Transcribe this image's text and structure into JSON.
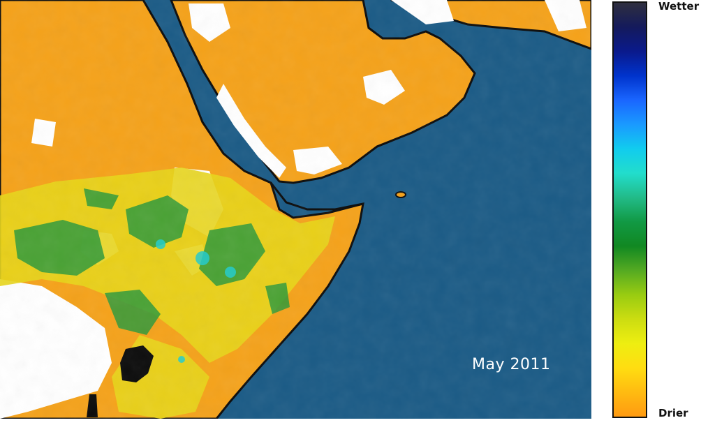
{
  "map": {
    "date_label": "May 2011",
    "ocean_color": "#1b5b86",
    "coast_color": "#0c0c0c"
  },
  "legend": {
    "top_label": "Wetter",
    "bottom_label": "Drier",
    "colors": [
      "#2f2f3f",
      "#141a5c",
      "#0a1a8c",
      "#0033cc",
      "#1a66ff",
      "#1a9aff",
      "#11ccee",
      "#22ddcc",
      "#22bb88",
      "#119944",
      "#118822",
      "#55aa22",
      "#99cc11",
      "#ccdd11",
      "#eeee11",
      "#ffdd11",
      "#ffbb11",
      "#ff9a11"
    ]
  }
}
